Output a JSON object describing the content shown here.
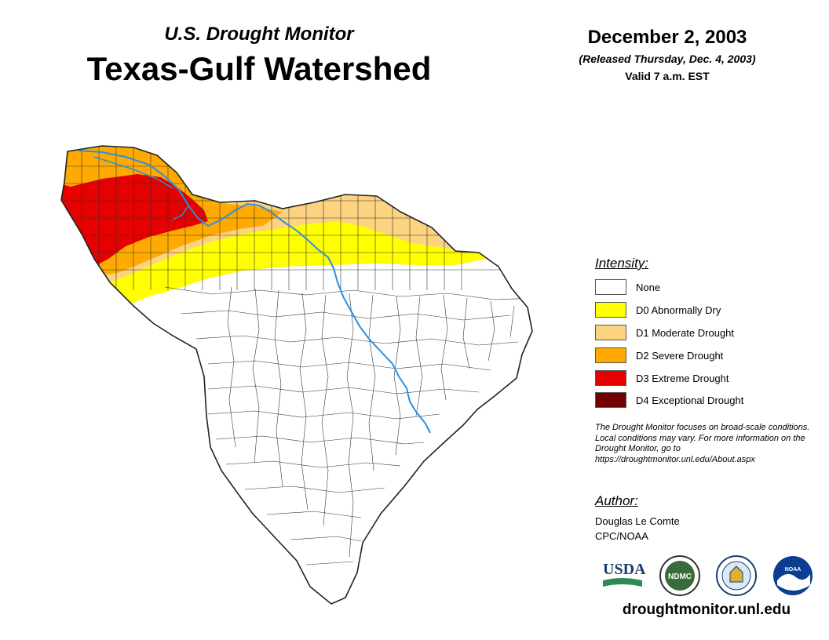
{
  "header": {
    "subtitle": "U.S. Drought Monitor",
    "title": "Texas-Gulf Watershed",
    "date": "December 2, 2003",
    "released": "(Released Thursday, Dec. 4, 2003)",
    "valid": "Valid 7 a.m. EST"
  },
  "legend": {
    "title": "Intensity:",
    "items": [
      {
        "label": "None",
        "color": "#ffffff"
      },
      {
        "label": "D0 Abnormally Dry",
        "color": "#ffff00"
      },
      {
        "label": "D1 Moderate Drought",
        "color": "#fcd37f"
      },
      {
        "label": "D2 Severe Drought",
        "color": "#ffaa00"
      },
      {
        "label": "D3 Extreme Drought",
        "color": "#e60000"
      },
      {
        "label": "D4 Exceptional Drought",
        "color": "#730000"
      }
    ]
  },
  "note": "The Drought Monitor focuses on broad-scale conditions. Local conditions may vary. For more information on the Drought Monitor, go to https://droughtmonitor.unl.edu/About.aspx",
  "author": {
    "title": "Author:",
    "name": "Douglas Le Comte",
    "org": "CPC/NOAA"
  },
  "logos": {
    "usda": "USDA",
    "ndmc": "NDMC",
    "noaa": "NOAA"
  },
  "website": "droughtmonitor.unl.edu",
  "colors": {
    "river": "#2b8fe0",
    "county_line": "#333333"
  }
}
